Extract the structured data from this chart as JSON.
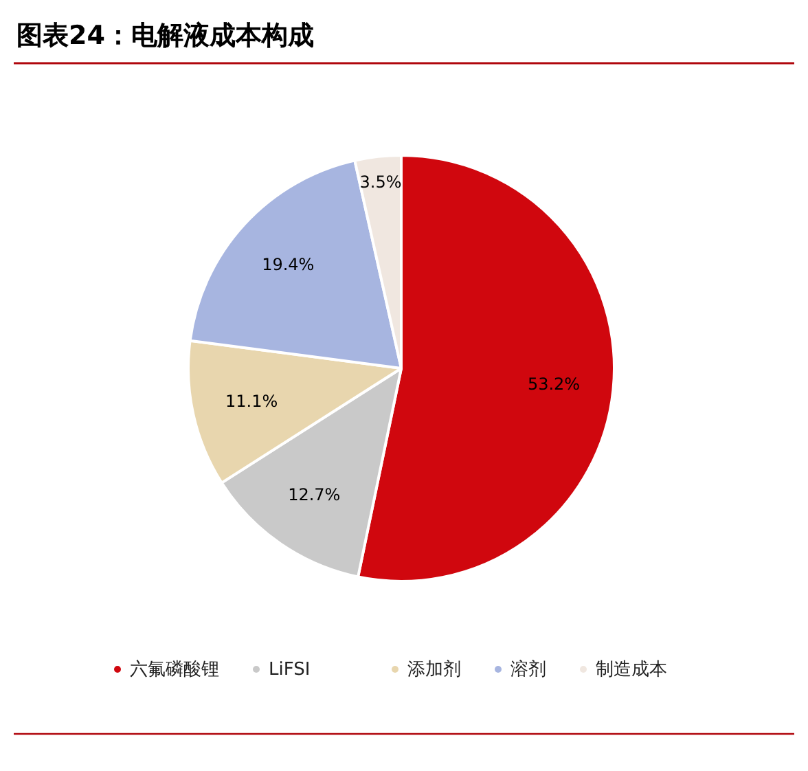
{
  "chart_data": {
    "type": "pie",
    "title": "图表24：电解液成本构成",
    "categories": [
      "六氟磷酸锂",
      "LiFSI",
      "添加剂",
      "溶剂",
      "制造成本"
    ],
    "values": [
      53.2,
      12.7,
      11.1,
      19.4,
      3.5
    ],
    "colors": [
      "#d0070e",
      "#c9c9c9",
      "#e8d6ae",
      "#a7b5e0",
      "#f0e7e0"
    ],
    "value_labels": [
      "53.2%",
      "12.7%",
      "11.1%",
      "19.4%",
      "3.5%"
    ],
    "legend": "bottom"
  }
}
